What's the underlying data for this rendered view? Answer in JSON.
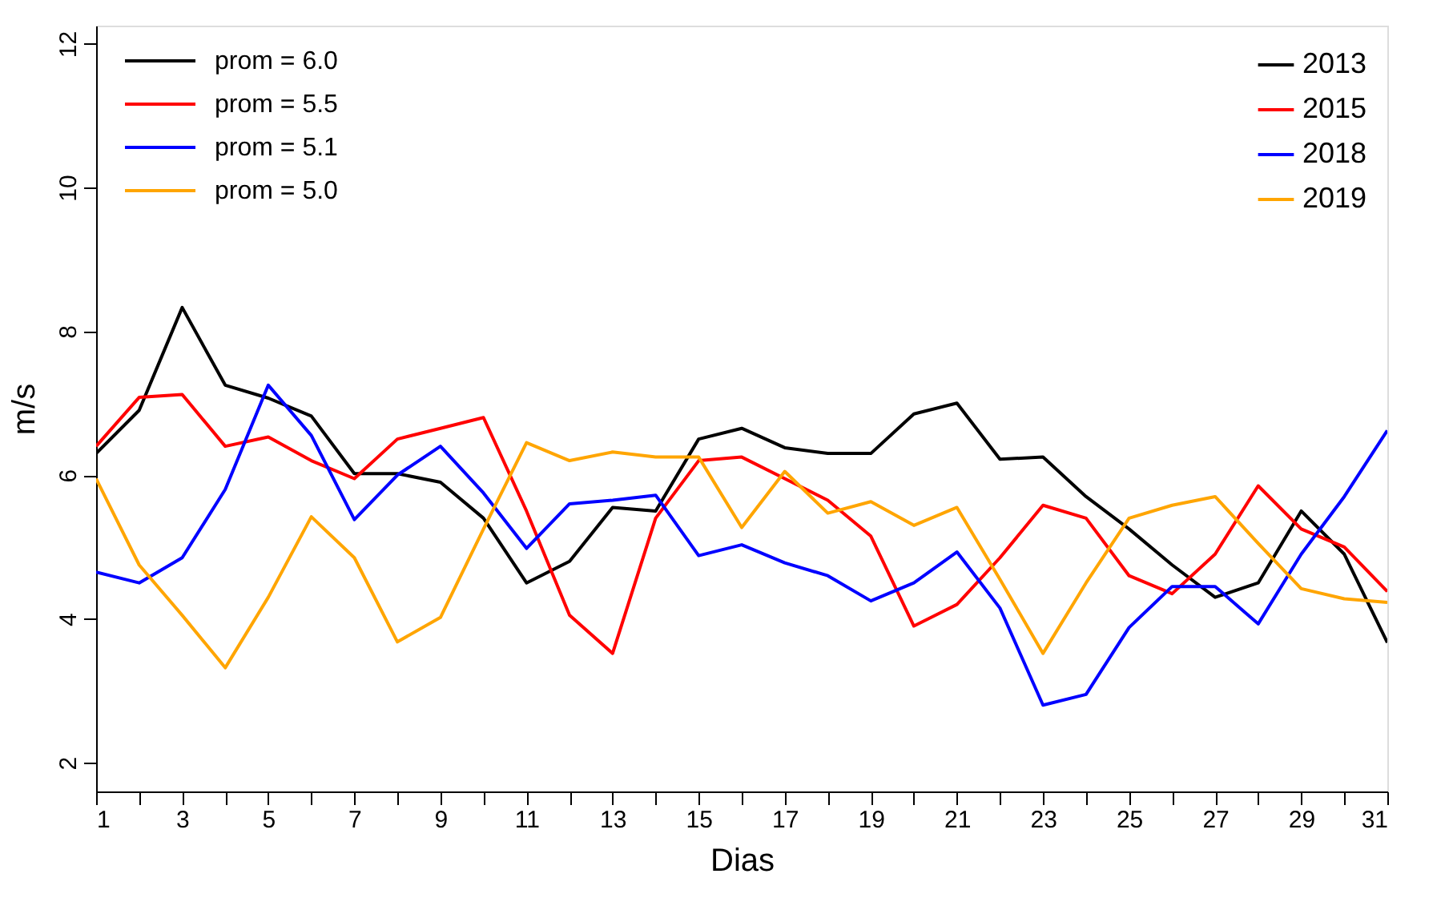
{
  "chart_data": {
    "type": "line",
    "xlabel": "Dias",
    "ylabel": "m/s",
    "x": [
      1,
      2,
      3,
      4,
      5,
      6,
      7,
      8,
      9,
      10,
      11,
      12,
      13,
      14,
      15,
      16,
      17,
      18,
      19,
      20,
      21,
      22,
      23,
      24,
      25,
      26,
      27,
      28,
      29,
      30,
      31
    ],
    "series": [
      {
        "name": "2013",
        "color": "#000000",
        "values": [
          6.3,
          6.9,
          8.33,
          7.25,
          7.07,
          6.82,
          6.02,
          6.02,
          5.9,
          5.4,
          4.5,
          4.8,
          5.55,
          5.5,
          6.5,
          6.65,
          6.38,
          6.3,
          6.3,
          6.85,
          7.0,
          6.22,
          6.25,
          5.7,
          5.25,
          4.75,
          4.3,
          4.5,
          5.5,
          4.9,
          3.67
        ]
      },
      {
        "name": "2015",
        "color": "#ff0000",
        "values": [
          6.4,
          7.08,
          7.12,
          6.4,
          6.53,
          6.2,
          5.95,
          6.5,
          6.65,
          6.8,
          5.5,
          4.05,
          3.52,
          5.4,
          6.2,
          6.25,
          5.95,
          5.65,
          5.15,
          3.9,
          4.2,
          4.85,
          5.58,
          5.4,
          4.6,
          4.35,
          4.9,
          5.85,
          5.25,
          5.0,
          4.38
        ]
      },
      {
        "name": "2018",
        "color": "#0000ff",
        "values": [
          4.65,
          4.5,
          4.85,
          5.8,
          7.25,
          6.55,
          5.38,
          6.0,
          6.4,
          5.75,
          4.98,
          5.6,
          5.65,
          5.72,
          4.88,
          5.03,
          4.78,
          4.6,
          4.25,
          4.5,
          4.93,
          4.15,
          2.8,
          2.95,
          3.88,
          4.45,
          4.45,
          3.93,
          4.9,
          5.7,
          6.62
        ]
      },
      {
        "name": "2019",
        "color": "#ffa500",
        "values": [
          5.95,
          4.75,
          4.05,
          3.32,
          4.3,
          5.42,
          4.85,
          3.68,
          4.02,
          5.25,
          6.45,
          6.2,
          6.32,
          6.25,
          6.25,
          5.27,
          6.05,
          5.47,
          5.63,
          5.3,
          5.55,
          4.55,
          3.52,
          4.5,
          5.4,
          5.58,
          5.7,
          5.05,
          4.42,
          4.28,
          4.23
        ]
      }
    ],
    "annotations": [
      "prom = 6.0",
      "prom = 5.5",
      "prom = 5.1",
      "prom = 5.0"
    ],
    "xlim": [
      1,
      31
    ],
    "xticks": [
      1,
      {
        "value": 2,
        "label": null
      },
      3,
      {
        "value": 4,
        "label": null
      },
      5,
      {
        "value": 6,
        "label": null
      },
      7,
      {
        "value": 8,
        "label": null
      },
      9,
      {
        "value": 10,
        "label": null
      },
      11,
      {
        "value": 12,
        "label": null
      },
      13,
      {
        "value": 14,
        "label": null
      },
      15,
      {
        "value": 16,
        "label": null
      },
      17,
      {
        "value": 18,
        "label": null
      },
      19,
      {
        "value": 20,
        "label": null
      },
      21,
      {
        "value": 22,
        "label": null
      },
      23,
      {
        "value": 24,
        "label": null
      },
      25,
      {
        "value": 26,
        "label": null
      },
      27,
      {
        "value": 28,
        "label": null
      },
      29,
      {
        "value": 30,
        "label": null
      },
      31
    ],
    "ylim": [
      1.6,
      12.25
    ],
    "yticks": [
      2,
      4,
      6,
      8,
      10,
      12
    ],
    "legend": "top right",
    "grid": false,
    "marker": "none",
    "line_style": "solid"
  }
}
